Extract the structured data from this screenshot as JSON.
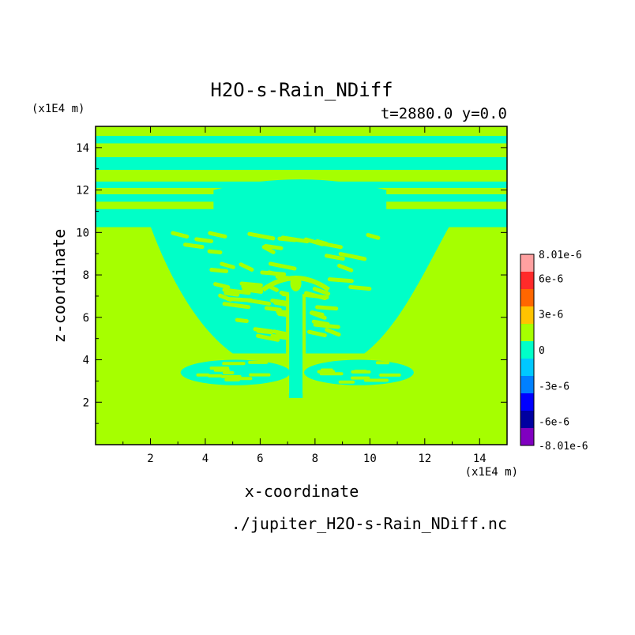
{
  "chart_data": {
    "type": "heatmap",
    "title": "H2O-s-Rain_NDiff",
    "subtitle": "t=2880.0 y=0.0",
    "xlabel": "x-coordinate",
    "ylabel": "z-coordinate",
    "x_unit": "(x1E4 m)",
    "z_unit": "(x1E4 m)",
    "xlim": [
      0,
      15
    ],
    "zlim": [
      0,
      15
    ],
    "x_ticks": [
      2,
      4,
      6,
      8,
      10,
      12,
      14
    ],
    "z_ticks": [
      2,
      4,
      6,
      8,
      10,
      12,
      14
    ],
    "file": "./jupiter_H2O-s-Rain_NDiff.nc",
    "background_level": 0,
    "background_color": "#a6ff00",
    "feature_color": "#00ffc8",
    "bands_z": [
      [
        14.2,
        14.55
      ],
      [
        12.95,
        13.55
      ],
      [
        12.1,
        12.4
      ],
      [
        11.45,
        11.8
      ],
      [
        10.25,
        11.1
      ]
    ],
    "colorbar": {
      "labels": [
        "8.01e-6",
        "6e-6",
        "3e-6",
        "0",
        "-3e-6",
        "-6e-6",
        "-8.01e-6"
      ],
      "label_values": [
        8.01e-06,
        6e-06,
        3e-06,
        0,
        -3e-06,
        -6e-06,
        -8.01e-06
      ],
      "vmin": -8.01e-06,
      "vmax": 8.01e-06,
      "colors_top_to_bottom": [
        "#ffa0a0",
        "#ff2a2a",
        "#ff6600",
        "#ffc300",
        "#a6ff00",
        "#00ffc8",
        "#00c8ff",
        "#0080ff",
        "#0000ff",
        "#0000a0",
        "#8000c0"
      ]
    }
  }
}
